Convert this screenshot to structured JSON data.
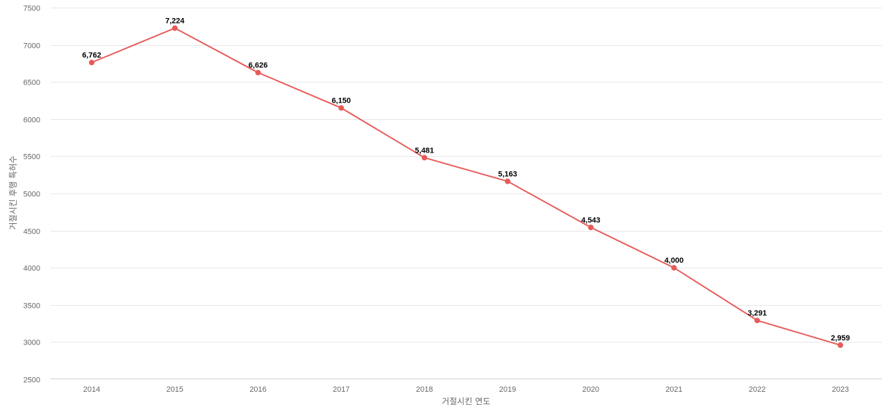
{
  "chart_data": {
    "type": "line",
    "title": "",
    "xlabel": "거절시킨 연도",
    "ylabel": "거절시킨 후행 특허수",
    "x": [
      "2014",
      "2015",
      "2016",
      "2017",
      "2018",
      "2019",
      "2020",
      "2021",
      "2022",
      "2023"
    ],
    "series": [
      {
        "values": [
          6762,
          7224,
          6626,
          6150,
          5481,
          5163,
          4543,
          4000,
          3291,
          2959
        ],
        "labels": [
          "6,762",
          "7,224",
          "6,626",
          "6,150",
          "5,481",
          "5,163",
          "4,543",
          "4,000",
          "3,291",
          "2,959"
        ],
        "color": "#e85a5a"
      }
    ],
    "ylim": [
      2500,
      7500
    ],
    "yticks": [
      "2500",
      "3000",
      "3500",
      "4000",
      "4500",
      "5000",
      "5500",
      "6000",
      "6500",
      "7000",
      "7500"
    ],
    "grid": true,
    "legend": "none"
  }
}
